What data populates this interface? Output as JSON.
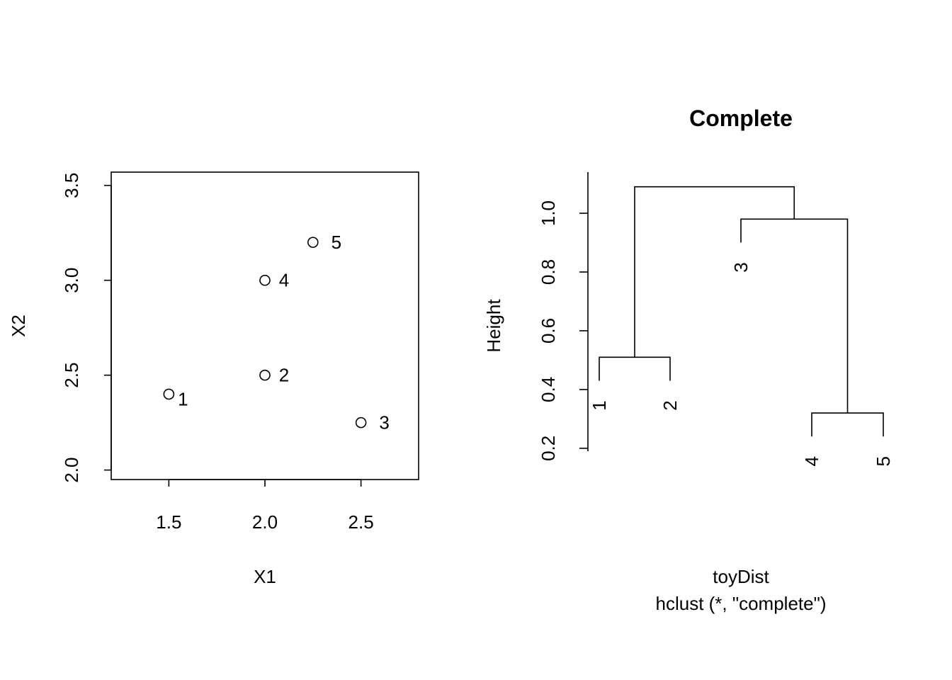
{
  "chart_data": [
    {
      "type": "scatter",
      "title": "",
      "xlabel": "X1",
      "ylabel": "X2",
      "xlim": [
        1.2,
        2.8
      ],
      "ylim": [
        1.95,
        3.57
      ],
      "x_ticks": [
        "1.5",
        "2.0",
        "2.5"
      ],
      "y_ticks": [
        "2.0",
        "2.5",
        "3.0",
        "3.5"
      ],
      "points": [
        {
          "label": "1",
          "x": 1.5,
          "y": 2.4
        },
        {
          "label": "2",
          "x": 2.0,
          "y": 2.5
        },
        {
          "label": "3",
          "x": 2.5,
          "y": 2.25
        },
        {
          "label": "4",
          "x": 2.0,
          "y": 3.0
        },
        {
          "label": "5",
          "x": 2.25,
          "y": 3.2
        }
      ]
    },
    {
      "type": "dendrogram",
      "title": "Complete",
      "ylabel": "Height",
      "xlabel": "toyDist",
      "sub": "hclust (*, \"complete\")",
      "ylim": [
        0.19,
        1.14
      ],
      "y_ticks": [
        "0.2",
        "0.4",
        "0.6",
        "0.8",
        "1.0"
      ],
      "leaves": [
        "1",
        "2",
        "3",
        "4",
        "5"
      ],
      "merges": [
        {
          "members": [
            "4",
            "5"
          ],
          "height": 0.32
        },
        {
          "members": [
            "1",
            "2"
          ],
          "height": 0.51
        },
        {
          "members": [
            "3",
            "4",
            "5"
          ],
          "height": 0.98
        },
        {
          "members": [
            "1",
            "2",
            "3",
            "4",
            "5"
          ],
          "height": 1.09
        }
      ]
    }
  ]
}
